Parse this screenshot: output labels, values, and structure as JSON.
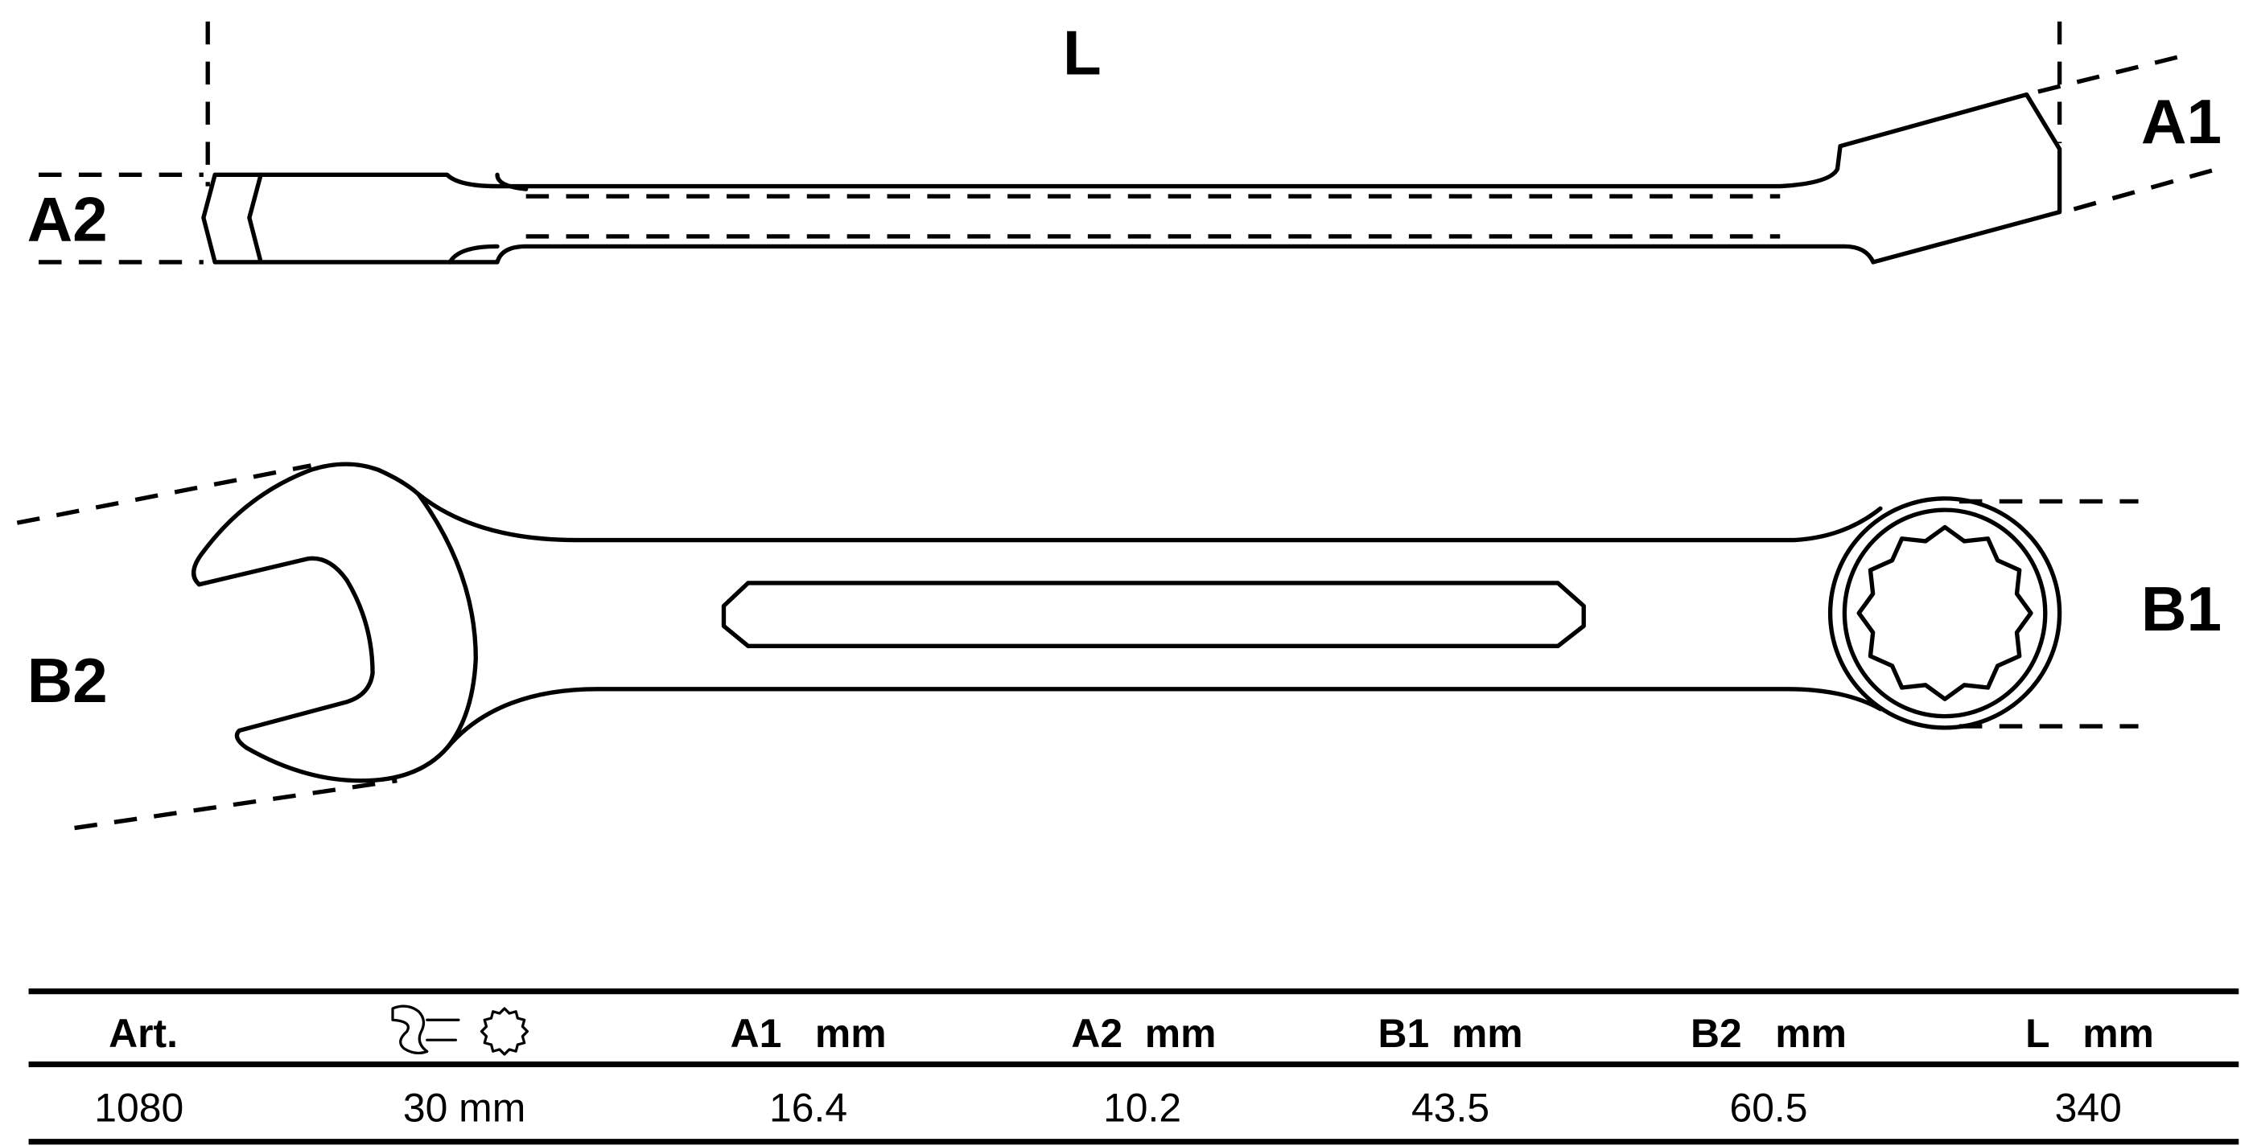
{
  "drawing": {
    "labels": {
      "L": "L",
      "A1": "A1",
      "A2": "A2",
      "B1": "B1",
      "B2": "B2"
    }
  },
  "table": {
    "headers": [
      "Art.",
      "",
      "A1   mm",
      "A2  mm",
      "B1  mm",
      "B2   mm",
      "L   mm"
    ],
    "header_icons": [
      "open-end-wrench-icon",
      "twelve-point-ring-icon"
    ],
    "rows": [
      [
        "1080",
        "30 mm",
        "16.4",
        "10.2",
        "43.5",
        "60.5",
        "340"
      ]
    ]
  }
}
